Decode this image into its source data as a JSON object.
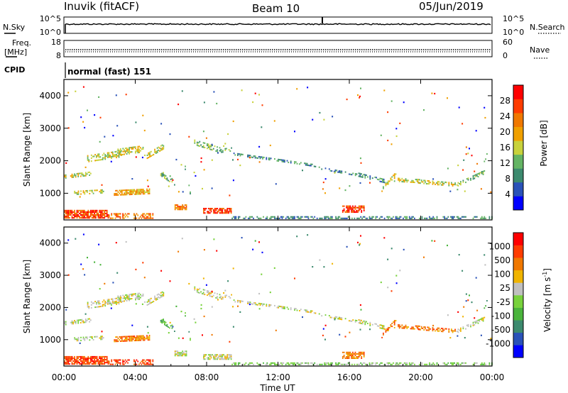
{
  "header": {
    "station": "Inuvik (fitACF)",
    "beam": "Beam 10",
    "date": "05/Jun/2019"
  },
  "panels": {
    "noise": {
      "left_label": "N.Sky",
      "right_label": "N.Search",
      "left_ticks": [
        "10^5",
        "10^0"
      ],
      "right_ticks": [
        "10^5",
        "10^0"
      ]
    },
    "freq": {
      "left_label": "Freq.",
      "left_unit": "[MHz]",
      "right_label": "Nave",
      "left_ticks": [
        "18",
        "8"
      ],
      "right_ticks": [
        "60",
        "0"
      ]
    },
    "cpid": {
      "label": "CPID",
      "text": "normal (fast) 151"
    }
  },
  "colors": {
    "power": [
      "#0000ff",
      "#2a52b8",
      "#3c8a6e",
      "#64b464",
      "#c8d23c",
      "#f0a000",
      "#f07800",
      "#ff3c00",
      "#ff0000"
    ],
    "velocity": [
      "#0000ff",
      "#2a52b8",
      "#3c8a6e",
      "#4ab43c",
      "#78d23c",
      "#c0c0c0",
      "#f0b400",
      "#f07800",
      "#ff3c00",
      "#ff0000"
    ]
  },
  "chart_data": [
    {
      "type": "heatmap",
      "name": "Power",
      "ylabel": "Slant Range [km]",
      "yticks": [
        "4000",
        "3000",
        "2000",
        "1000"
      ],
      "ylim": [
        180,
        4500
      ],
      "colorbar_label": "Power [dB]",
      "colorbar_ticks": [
        "28",
        "24",
        "20",
        "16",
        "12",
        "8",
        "4"
      ],
      "colorbar_range": [
        0,
        30
      ]
    },
    {
      "type": "heatmap",
      "name": "Velocity",
      "xlabel": "Time UT",
      "ylabel": "Slant Range [km]",
      "xticks": [
        "00:00",
        "04:00",
        "08:00",
        "12:00",
        "16:00",
        "20:00",
        "00:00"
      ],
      "xlim": [
        0,
        24
      ],
      "yticks": [
        "4000",
        "3000",
        "2000",
        "1000"
      ],
      "ylim": [
        180,
        4500
      ],
      "colorbar_label": "Velocity [m s",
      "colorbar_label_sup": "-1",
      "colorbar_label_end": "]",
      "colorbar_ticks": [
        "1000",
        "500",
        "100",
        "25",
        "-25",
        "-100",
        "-500",
        "-1000"
      ]
    }
  ]
}
